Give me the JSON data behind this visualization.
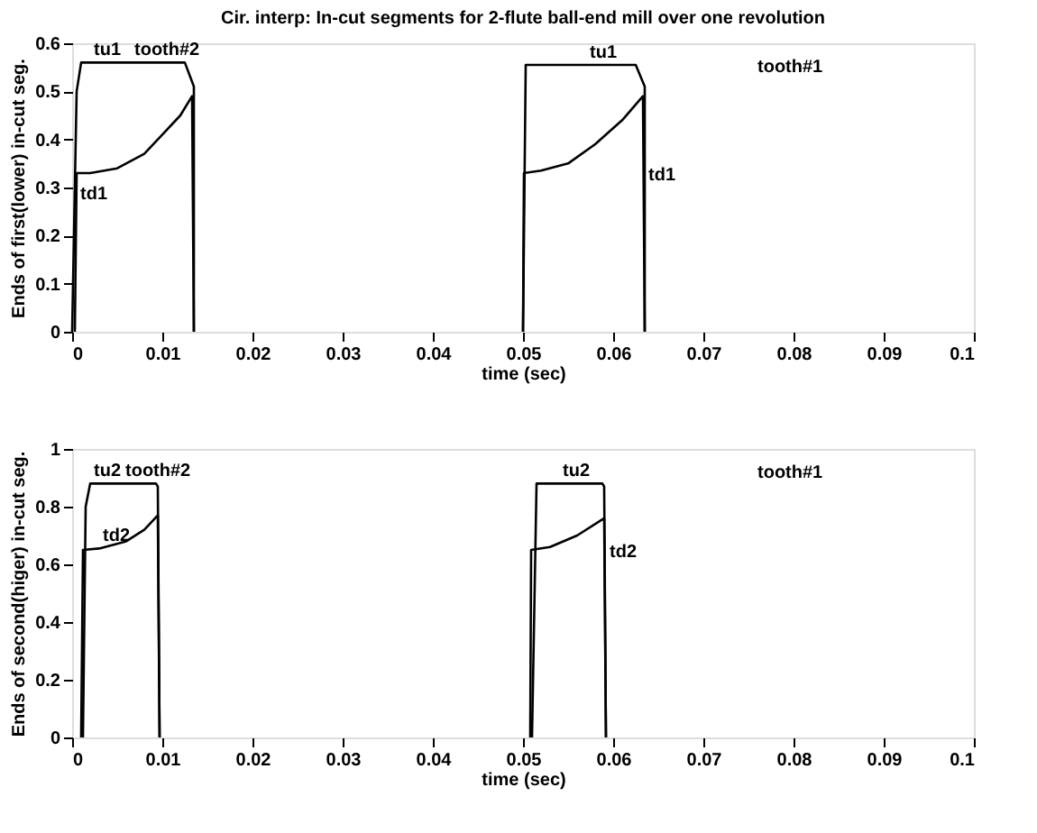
{
  "chart_data": [
    {
      "type": "line",
      "title": "Cir. interp: In-cut segments for 2-flute ball-end mill over one revolution",
      "xlabel": "time (sec)",
      "ylabel": "Ends of first(lower) in-cut seg.",
      "xlim": [
        0,
        0.1
      ],
      "xticks": [
        0,
        0.01,
        0.02,
        0.03,
        0.04,
        0.05,
        0.06,
        0.07,
        0.08,
        0.09,
        0.1
      ],
      "ylim": [
        0,
        0.6
      ],
      "yticks": [
        0,
        0.1,
        0.2,
        0.3,
        0.4,
        0.5,
        0.6
      ],
      "line_style": "solid",
      "series": [
        {
          "color": "#000000",
          "x": [
            0,
            0.0005,
            0.001,
            0.0125,
            0.0135,
            0.0135
          ],
          "values": [
            0,
            0.5,
            0.56,
            0.56,
            0.51,
            0
          ]
        },
        {
          "color": "#000000",
          "x": [
            0.0003,
            0.0005,
            0.002,
            0.005,
            0.008,
            0.01,
            0.012,
            0.0133,
            0.0135
          ],
          "values": [
            0,
            0.33,
            0.33,
            0.34,
            0.37,
            0.41,
            0.45,
            0.49,
            0
          ]
        },
        {
          "color": "#000000",
          "x": [
            0.05,
            0.0503,
            0.0625,
            0.0635,
            0.0635
          ],
          "values": [
            0,
            0.555,
            0.555,
            0.51,
            0
          ]
        },
        {
          "color": "#000000",
          "x": [
            0.05,
            0.0501,
            0.052,
            0.055,
            0.058,
            0.061,
            0.0633,
            0.0635
          ],
          "values": [
            0,
            0.33,
            0.335,
            0.35,
            0.39,
            0.44,
            0.49,
            0
          ]
        }
      ],
      "annotations": [
        {
          "text": "tu1",
          "x": 0.002,
          "y": 0.56
        },
        {
          "text": "tooth#2",
          "x": 0.0065,
          "y": 0.56
        },
        {
          "text": "td1",
          "x": 0.0005,
          "y": 0.26
        },
        {
          "text": "tu1",
          "x": 0.057,
          "y": 0.555
        },
        {
          "text": "td1",
          "x": 0.0635,
          "y": 0.3
        },
        "tooth#1"
      ]
    },
    {
      "type": "line",
      "xlabel": "time (sec)",
      "ylabel": "Ends of second(higer) in-cut seg.",
      "xlim": [
        0,
        0.1
      ],
      "xticks": [
        0,
        0.01,
        0.02,
        0.03,
        0.04,
        0.05,
        0.06,
        0.07,
        0.08,
        0.09,
        0.1
      ],
      "ylim": [
        0,
        1
      ],
      "yticks": [
        0,
        0.2,
        0.4,
        0.6,
        0.8,
        1
      ],
      "line_style": "solid",
      "series": [
        {
          "color": "#000000",
          "x": [
            0.0012,
            0.0015,
            0.002,
            0.0093,
            0.0095,
            0.0097
          ],
          "values": [
            0,
            0.8,
            0.88,
            0.88,
            0.87,
            0
          ]
        },
        {
          "color": "#000000",
          "x": [
            0.001,
            0.0012,
            0.003,
            0.006,
            0.008,
            0.0095,
            0.0097
          ],
          "values": [
            0,
            0.65,
            0.655,
            0.68,
            0.72,
            0.77,
            0
          ]
        },
        {
          "color": "#000000",
          "x": [
            0.051,
            0.0515,
            0.0588,
            0.059,
            0.0592
          ],
          "values": [
            0,
            0.88,
            0.88,
            0.87,
            0
          ]
        },
        {
          "color": "#000000",
          "x": [
            0.0508,
            0.0509,
            0.053,
            0.056,
            0.059,
            0.0592
          ],
          "values": [
            0,
            0.65,
            0.66,
            0.7,
            0.76,
            0
          ]
        }
      ],
      "annotations": [
        {
          "text": "tu2",
          "x": 0.002,
          "y": 0.88
        },
        {
          "text": "tooth#2",
          "x": 0.0055,
          "y": 0.88
        },
        {
          "text": "td2",
          "x": 0.003,
          "y": 0.655
        },
        {
          "text": "tu2",
          "x": 0.054,
          "y": 0.88
        },
        {
          "text": "td2",
          "x": 0.0592,
          "y": 0.6
        },
        "tooth#1"
      ]
    }
  ]
}
